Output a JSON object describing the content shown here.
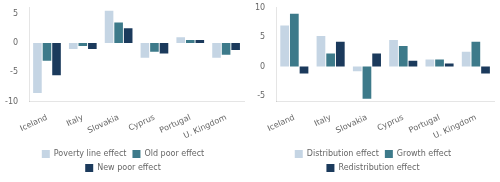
{
  "chart_data": [
    {
      "type": "bar",
      "categories": [
        "Iceland",
        "Italy",
        "Slovakia",
        "Cyprus",
        "Portugal",
        "U. Kingdom"
      ],
      "series": [
        {
          "name": "Poverty line effect",
          "color": "#c5d5e4",
          "values": [
            -8.5,
            -1.0,
            5.5,
            -2.5,
            1.0,
            -2.5
          ]
        },
        {
          "name": "Old poor effect",
          "color": "#3d7a8a",
          "values": [
            -3.0,
            -0.5,
            3.5,
            -1.5,
            0.5,
            -2.0
          ]
        },
        {
          "name": "New poor effect",
          "color": "#1b3a5c",
          "values": [
            -5.5,
            -1.0,
            2.5,
            -1.8,
            0.5,
            -1.2
          ]
        }
      ],
      "ylim": [
        -10,
        6
      ],
      "yticks": [
        -10,
        -5,
        0,
        5
      ],
      "grid": false,
      "legend": "bottom"
    },
    {
      "type": "bar",
      "categories": [
        "Iceland",
        "Italy",
        "Slovakia",
        "Cyprus",
        "Portugal",
        "U. Kingdom"
      ],
      "series": [
        {
          "name": "Distribution effect",
          "color": "#c5d5e4",
          "values": [
            7.0,
            5.2,
            -0.8,
            4.5,
            1.2,
            2.5
          ]
        },
        {
          "name": "Growth effect",
          "color": "#3d7a8a",
          "values": [
            9.0,
            2.2,
            -5.5,
            3.5,
            1.2,
            4.2
          ]
        },
        {
          "name": "Redistribution effect",
          "color": "#1b3a5c",
          "values": [
            -1.2,
            4.2,
            2.2,
            1.0,
            0.5,
            -1.2
          ]
        }
      ],
      "ylim": [
        -6,
        10
      ],
      "yticks": [
        -5,
        0,
        5,
        10
      ],
      "grid": false,
      "legend": "bottom"
    }
  ]
}
